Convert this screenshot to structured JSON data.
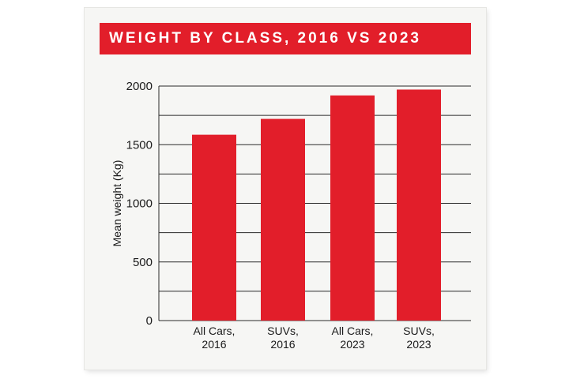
{
  "chart_data": {
    "type": "bar",
    "title": "WEIGHT BY CLASS, 2016 VS 2023",
    "xlabel": "",
    "ylabel": "Mean weight (Kg)",
    "categories": [
      [
        "All Cars,",
        "2016"
      ],
      [
        "SUVs,",
        "2016"
      ],
      [
        "All Cars,",
        "2023"
      ],
      [
        "SUVs,",
        "2023"
      ]
    ],
    "values": [
      1585,
      1720,
      1920,
      1970
    ],
    "ylim": [
      0,
      2000
    ],
    "yticks": [
      0,
      500,
      1000,
      1500,
      2000
    ],
    "gridlines": [
      0,
      250,
      500,
      750,
      1000,
      1250,
      1500,
      1750,
      2000
    ],
    "grid": true,
    "colors": {
      "bar": "#e21e2a",
      "banner": "#e21e2a",
      "grid": "#2a2a2a"
    }
  }
}
